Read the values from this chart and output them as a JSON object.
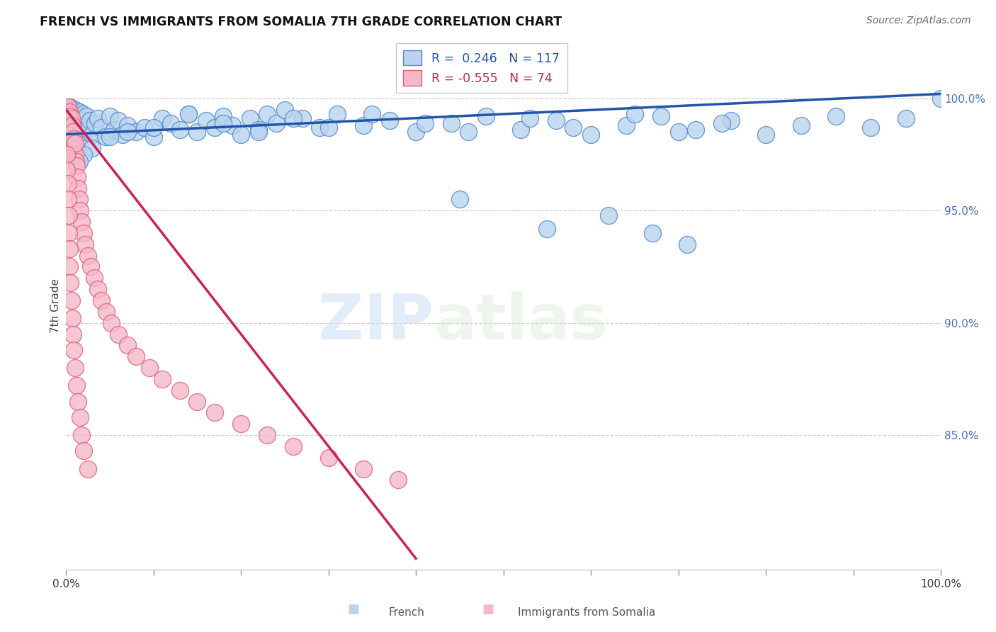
{
  "title": "FRENCH VS IMMIGRANTS FROM SOMALIA 7TH GRADE CORRELATION CHART",
  "source": "Source: ZipAtlas.com",
  "ylabel": "7th Grade",
  "watermark_zip": "ZIP",
  "watermark_atlas": "atlas",
  "french_R": 0.246,
  "french_N": 117,
  "somalia_R": -0.555,
  "somalia_N": 74,
  "french_color": "#b8d4ee",
  "french_edge_color": "#5588cc",
  "french_line_color": "#2255aa",
  "somalia_color": "#f5b8c8",
  "somalia_edge_color": "#e06080",
  "somalia_line_color": "#cc2255",
  "right_tick_color": "#4472c4",
  "grid_color": "#cccccc",
  "ymin": 79.0,
  "ymax": 102.5,
  "xmin": 0.0,
  "xmax": 1.0,
  "french_line_x": [
    0.0,
    1.0
  ],
  "french_line_y": [
    98.4,
    100.2
  ],
  "somalia_line_x": [
    0.0,
    0.4
  ],
  "somalia_line_y": [
    99.5,
    79.5
  ],
  "french_x": [
    0.001,
    0.002,
    0.002,
    0.003,
    0.003,
    0.004,
    0.004,
    0.005,
    0.005,
    0.005,
    0.006,
    0.006,
    0.006,
    0.007,
    0.007,
    0.007,
    0.008,
    0.008,
    0.008,
    0.009,
    0.009,
    0.01,
    0.01,
    0.01,
    0.011,
    0.011,
    0.012,
    0.012,
    0.013,
    0.013,
    0.014,
    0.014,
    0.015,
    0.015,
    0.016,
    0.017,
    0.018,
    0.019,
    0.02,
    0.021,
    0.022,
    0.023,
    0.025,
    0.027,
    0.03,
    0.033,
    0.036,
    0.04,
    0.045,
    0.05,
    0.055,
    0.06,
    0.065,
    0.07,
    0.08,
    0.09,
    0.1,
    0.11,
    0.12,
    0.13,
    0.14,
    0.15,
    0.16,
    0.17,
    0.18,
    0.19,
    0.2,
    0.21,
    0.22,
    0.23,
    0.24,
    0.25,
    0.27,
    0.29,
    0.31,
    0.34,
    0.37,
    0.4,
    0.44,
    0.48,
    0.52,
    0.56,
    0.6,
    0.64,
    0.68,
    0.72,
    0.76,
    0.8,
    0.84,
    0.88,
    0.92,
    0.96,
    1.0,
    0.7,
    0.75,
    0.65,
    0.58,
    0.53,
    0.46,
    0.41,
    0.35,
    0.3,
    0.26,
    0.22,
    0.18,
    0.14,
    0.1,
    0.07,
    0.05,
    0.03,
    0.02,
    0.015,
    0.45,
    0.55,
    0.62,
    0.67,
    0.71
  ],
  "french_y": [
    99.2,
    99.5,
    98.8,
    99.3,
    98.6,
    99.4,
    98.7,
    99.1,
    98.5,
    99.6,
    99.2,
    98.8,
    99.5,
    99.0,
    98.4,
    99.3,
    99.1,
    98.6,
    99.4,
    98.9,
    99.2,
    98.7,
    99.5,
    98.3,
    99.1,
    98.5,
    99.3,
    98.8,
    99.0,
    98.4,
    99.2,
    98.6,
    99.4,
    98.2,
    98.9,
    99.1,
    98.7,
    99.3,
    98.5,
    99.0,
    98.8,
    99.2,
    98.6,
    99.0,
    98.4,
    98.9,
    99.1,
    98.7,
    98.3,
    99.2,
    98.6,
    99.0,
    98.4,
    98.8,
    98.5,
    98.7,
    98.3,
    99.1,
    98.9,
    98.6,
    99.3,
    98.5,
    99.0,
    98.7,
    99.2,
    98.8,
    98.4,
    99.1,
    98.6,
    99.3,
    98.9,
    99.5,
    99.1,
    98.7,
    99.3,
    98.8,
    99.0,
    98.5,
    98.9,
    99.2,
    98.6,
    99.0,
    98.4,
    98.8,
    99.2,
    98.6,
    99.0,
    98.4,
    98.8,
    99.2,
    98.7,
    99.1,
    100.0,
    98.5,
    98.9,
    99.3,
    98.7,
    99.1,
    98.5,
    98.9,
    99.3,
    98.7,
    99.1,
    98.5,
    98.9,
    99.3,
    98.7,
    98.5,
    98.3,
    97.8,
    97.5,
    97.2,
    95.5,
    94.2,
    94.8,
    94.0,
    93.5
  ],
  "somalia_x": [
    0.001,
    0.001,
    0.002,
    0.002,
    0.002,
    0.003,
    0.003,
    0.003,
    0.004,
    0.004,
    0.004,
    0.005,
    0.005,
    0.005,
    0.006,
    0.006,
    0.007,
    0.007,
    0.008,
    0.008,
    0.009,
    0.009,
    0.01,
    0.01,
    0.011,
    0.012,
    0.013,
    0.014,
    0.015,
    0.016,
    0.018,
    0.02,
    0.022,
    0.025,
    0.028,
    0.032,
    0.036,
    0.04,
    0.046,
    0.052,
    0.06,
    0.07,
    0.08,
    0.095,
    0.11,
    0.13,
    0.15,
    0.17,
    0.2,
    0.23,
    0.26,
    0.3,
    0.34,
    0.38,
    0.001,
    0.001,
    0.002,
    0.002,
    0.003,
    0.003,
    0.004,
    0.004,
    0.005,
    0.006,
    0.007,
    0.008,
    0.009,
    0.01,
    0.012,
    0.014,
    0.016,
    0.018,
    0.02,
    0.025
  ],
  "somalia_y": [
    99.5,
    98.8,
    99.2,
    98.5,
    99.6,
    98.9,
    99.3,
    98.2,
    98.7,
    99.4,
    98.1,
    99.0,
    98.4,
    99.2,
    98.6,
    99.1,
    98.3,
    98.8,
    98.0,
    98.5,
    97.8,
    98.2,
    97.5,
    98.0,
    97.2,
    97.0,
    96.5,
    96.0,
    95.5,
    95.0,
    94.5,
    94.0,
    93.5,
    93.0,
    92.5,
    92.0,
    91.5,
    91.0,
    90.5,
    90.0,
    89.5,
    89.0,
    88.5,
    88.0,
    87.5,
    87.0,
    86.5,
    86.0,
    85.5,
    85.0,
    84.5,
    84.0,
    83.5,
    83.0,
    97.5,
    96.8,
    96.2,
    95.5,
    94.8,
    94.0,
    93.3,
    92.5,
    91.8,
    91.0,
    90.2,
    89.5,
    88.8,
    88.0,
    87.2,
    86.5,
    85.8,
    85.0,
    84.3,
    83.5
  ]
}
